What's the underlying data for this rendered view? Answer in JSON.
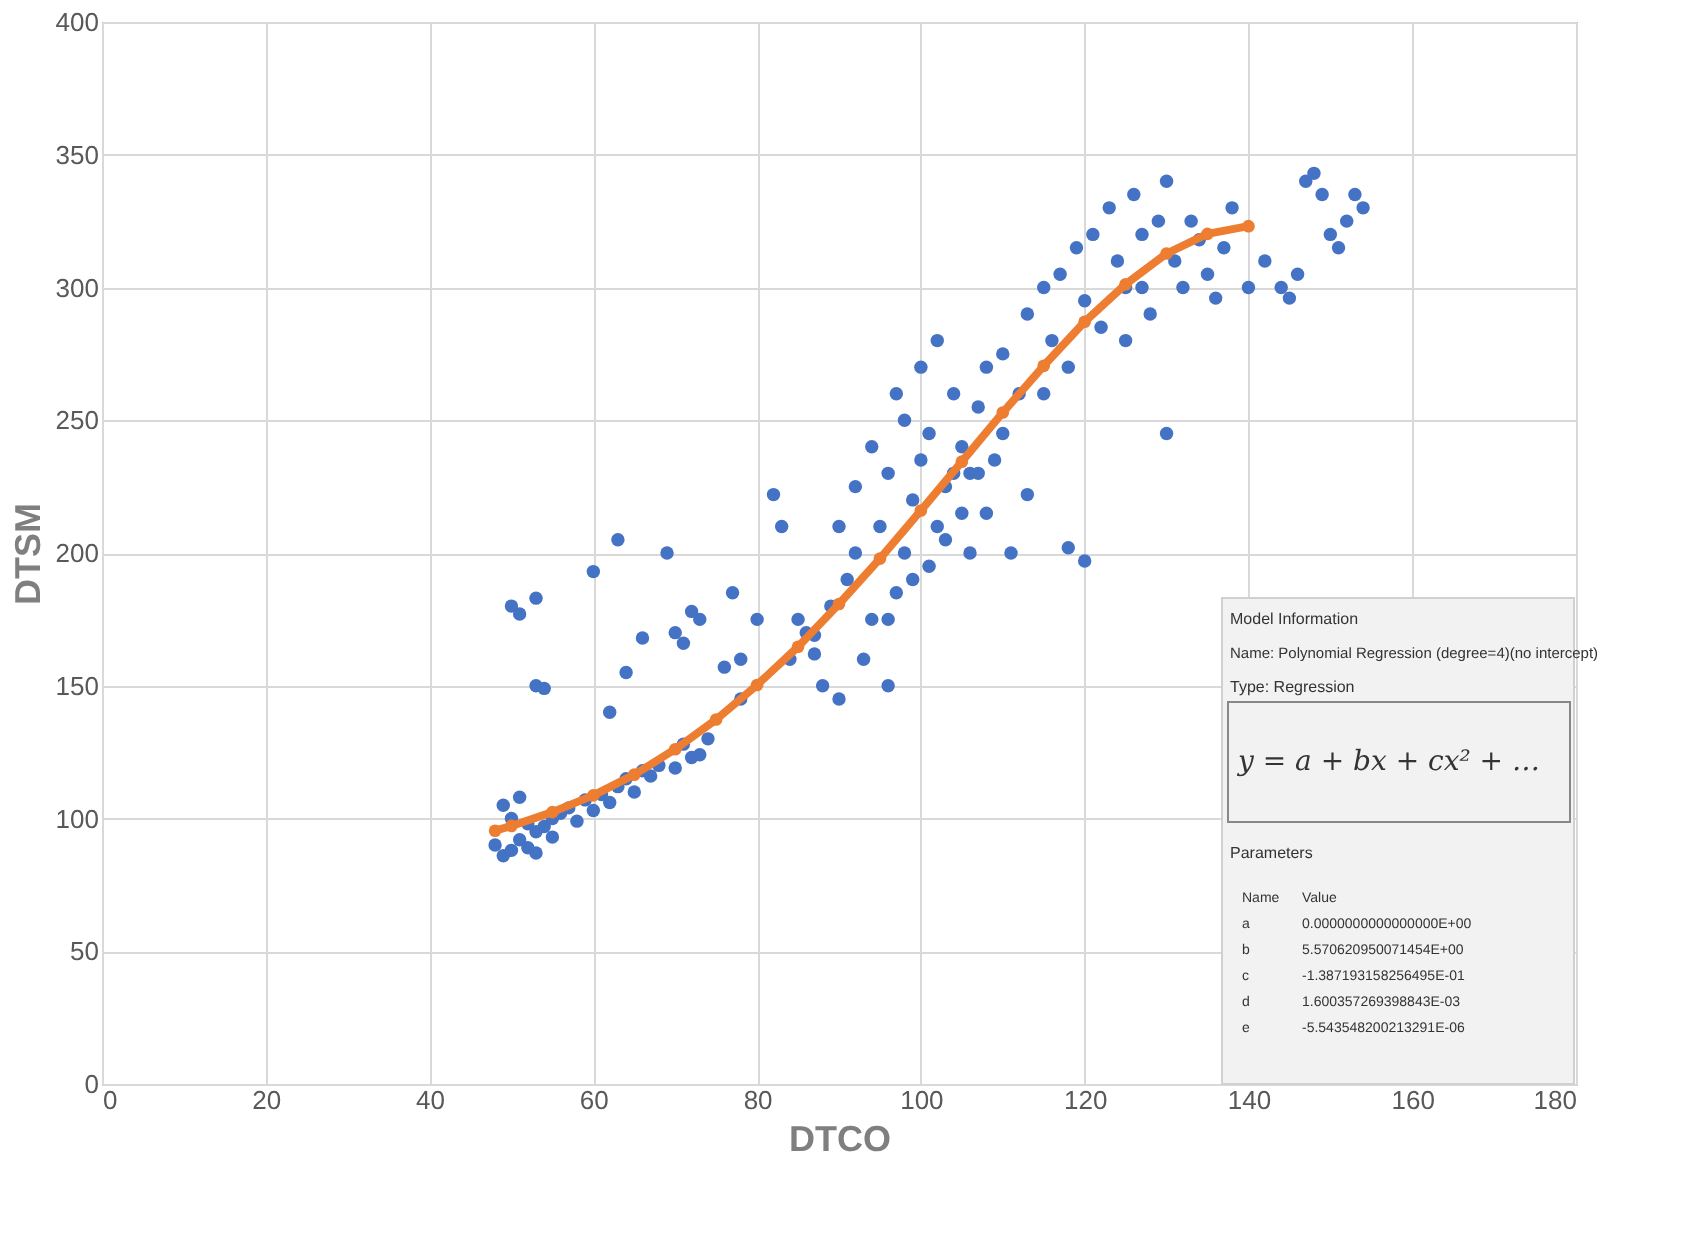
{
  "chart_data": {
    "type": "scatter",
    "xlabel": "DTCO",
    "ylabel": "DTSM",
    "xlim": [
      0,
      180
    ],
    "xticks": [
      0,
      20,
      40,
      60,
      80,
      100,
      120,
      140,
      160,
      180
    ],
    "ylim": [
      0,
      400
    ],
    "yticks": [
      0,
      50,
      100,
      150,
      200,
      250,
      300,
      350,
      400
    ],
    "grid": true,
    "series": [
      {
        "color": "#4472c4",
        "marker": "circle",
        "x": [
          48,
          49,
          50,
          51,
          52,
          53,
          50,
          49,
          51,
          52,
          54,
          55,
          56,
          53,
          55,
          57,
          58,
          59,
          60,
          61,
          62,
          63,
          64,
          65,
          66,
          67,
          68,
          70,
          72,
          71,
          73,
          74,
          50,
          51,
          53,
          53,
          54,
          60,
          63,
          62,
          64,
          66,
          69,
          70,
          71,
          72,
          73,
          76,
          77,
          78,
          80,
          78,
          83,
          82,
          85,
          87,
          87,
          84,
          86,
          88,
          90,
          89,
          91,
          92,
          93,
          94,
          95,
          96,
          97,
          90,
          92,
          94,
          96,
          98,
          99,
          100,
          101,
          102,
          103,
          104,
          105,
          106,
          107,
          108,
          98,
          97,
          100,
          102,
          104,
          106,
          108,
          110,
          110,
          112,
          113,
          115,
          116,
          117,
          118,
          119,
          120,
          121,
          122,
          123,
          124,
          125,
          126,
          127,
          128,
          129,
          130,
          131,
          132,
          133,
          134,
          135,
          136,
          137,
          138,
          140,
          142,
          144,
          145,
          146,
          147,
          148,
          149,
          150,
          151,
          152,
          153,
          154,
          118,
          120,
          130,
          113,
          111,
          96,
          99,
          101,
          103,
          105,
          107,
          109,
          115,
          125,
          127
        ],
        "values": [
          90,
          86,
          88,
          92,
          89,
          95,
          100,
          105,
          108,
          98,
          97,
          100,
          102,
          87,
          93,
          104,
          99,
          107,
          103,
          109,
          106,
          112,
          115,
          110,
          118,
          116,
          120,
          119,
          123,
          128,
          124,
          130,
          180,
          177,
          183,
          150,
          149,
          193,
          205,
          140,
          155,
          168,
          200,
          170,
          166,
          178,
          175,
          157,
          185,
          160,
          175,
          145,
          210,
          222,
          175,
          169,
          162,
          160,
          170,
          150,
          145,
          180,
          190,
          200,
          160,
          175,
          210,
          150,
          185,
          210,
          225,
          240,
          230,
          200,
          220,
          235,
          245,
          210,
          225,
          260,
          240,
          230,
          255,
          270,
          250,
          260,
          270,
          280,
          230,
          200,
          215,
          245,
          275,
          260,
          290,
          300,
          280,
          305,
          270,
          315,
          295,
          320,
          285,
          330,
          310,
          300,
          335,
          320,
          290,
          325,
          340,
          310,
          300,
          325,
          318,
          305,
          296,
          315,
          330,
          300,
          310,
          300,
          296,
          305,
          340,
          343,
          335,
          320,
          315,
          325,
          335,
          330,
          202,
          197,
          245,
          222,
          200,
          175,
          190,
          195,
          205,
          215,
          230,
          235,
          260,
          280,
          300
        ]
      },
      {
        "type": "line",
        "color": "#ed7d31",
        "marker": "circle",
        "line_style": "solid",
        "x": [
          48,
          50,
          55,
          60,
          65,
          70,
          75,
          80,
          85,
          90,
          95,
          100,
          105,
          110,
          115,
          120,
          125,
          130,
          135,
          140
        ],
        "values": [
          95.4,
          97.2,
          102.4,
          108.7,
          116.5,
          126.1,
          137.3,
          150.3,
          164.7,
          180.8,
          197.9,
          216.0,
          234.4,
          252.9,
          270.5,
          287.1,
          301.2,
          312.8,
          320.2,
          323.1
        ]
      }
    ],
    "annotations": [
      "Model Information",
      "Name: Polynomial Regression (degree=4)(no intercept)",
      "Type:   Regression",
      "y = a + bx + cx² + …",
      "Parameters",
      "Name",
      "Value",
      "a",
      "0.0000000000000000E+00",
      "b",
      "5.570620950071454E+00",
      "c",
      "-1.387193158256495E-01",
      "d",
      "1.600357269398843E-03",
      "e",
      "-5.543548200213291E-06"
    ]
  }
}
